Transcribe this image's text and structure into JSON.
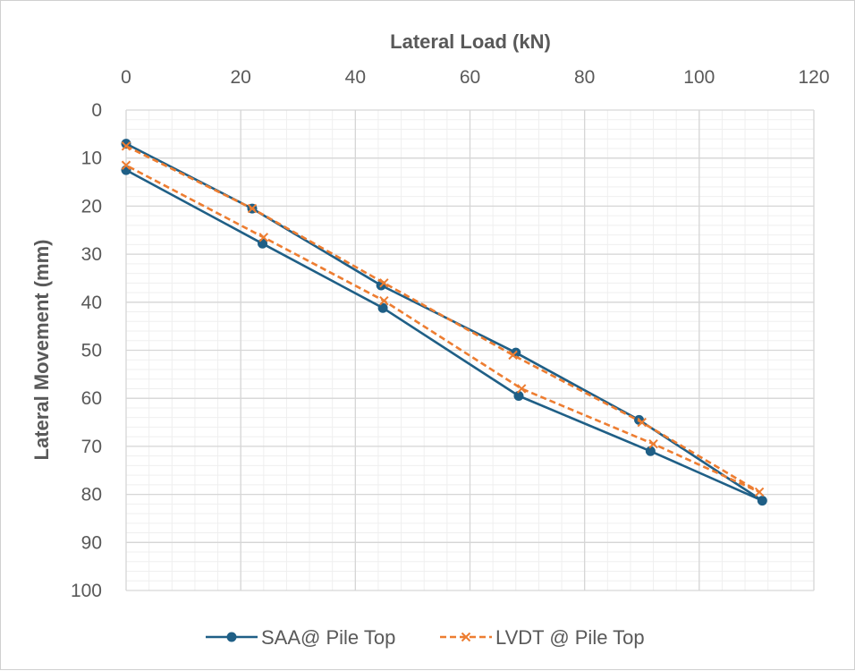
{
  "chart_data": {
    "type": "line",
    "title": "",
    "xlabel": "Lateral Load (kN)",
    "ylabel": "Lateral Movement (mm)",
    "x_axis_position": "top",
    "y_axis_inverted": true,
    "xlim": [
      0,
      120
    ],
    "ylim": [
      0,
      100
    ],
    "x_ticks": [
      0,
      20,
      40,
      60,
      80,
      100,
      120
    ],
    "y_ticks": [
      0,
      10,
      20,
      30,
      40,
      50,
      60,
      70,
      80,
      90,
      100
    ],
    "grid": {
      "major": true,
      "minor": true
    },
    "legend_position": "bottom",
    "series": [
      {
        "name": "SAA@ Pile Top",
        "color": "#1f5f86",
        "marker": "circle",
        "line_style": "solid",
        "x": [
          0,
          22,
          44.5,
          68,
          89.5,
          111,
          91.5,
          68.5,
          44.8,
          23.8,
          0
        ],
        "y": [
          7,
          20.5,
          36.5,
          50.5,
          64.5,
          81.3,
          71,
          59.5,
          41.2,
          27.8,
          12.5
        ]
      },
      {
        "name": "LVDT @ Pile Top",
        "color": "#ed7d31",
        "marker": "x",
        "line_style": "dashed",
        "x": [
          0,
          22,
          45,
          67.5,
          90,
          110.5,
          92,
          69,
          45,
          24,
          0
        ],
        "y": [
          7.5,
          20.5,
          36,
          51,
          65,
          79.5,
          69.5,
          58,
          39.7,
          26.5,
          11.5
        ]
      }
    ]
  }
}
